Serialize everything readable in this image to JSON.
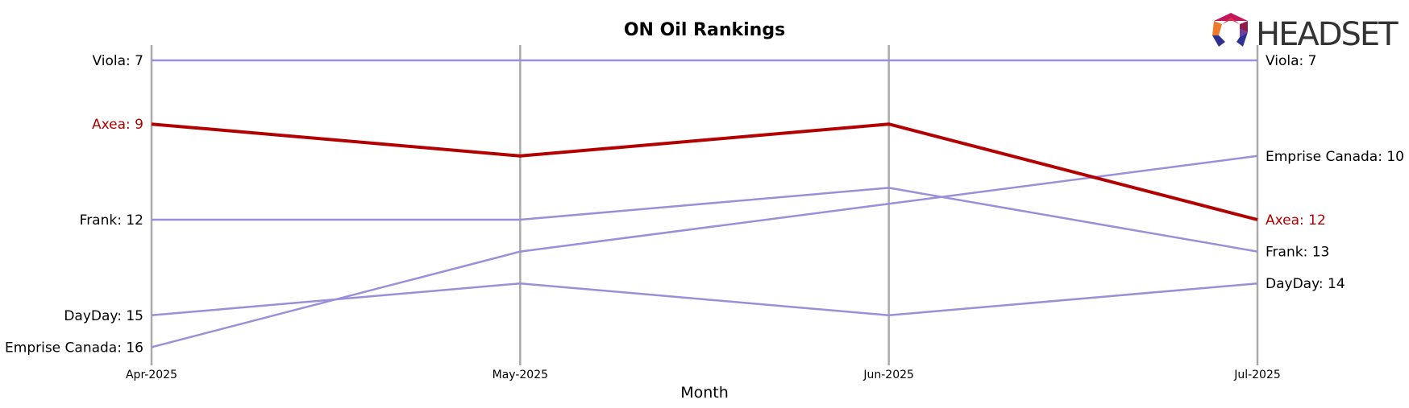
{
  "chart_data": {
    "type": "line",
    "title": "ON Oil Rankings",
    "xlabel": "Month",
    "ylabel": "",
    "x": [
      "Apr-2025",
      "May-2025",
      "Jun-2025",
      "Jul-2025"
    ],
    "ylim": [
      16.5,
      6.5
    ],
    "y_inverted": true,
    "grid": "vertical lines at each month",
    "series": [
      {
        "name": "Viola",
        "values": [
          7,
          7,
          7,
          7
        ],
        "color": "#9b8fd9",
        "highlight": false,
        "start_label": "Viola: 7",
        "end_label": "Viola: 7"
      },
      {
        "name": "Axea",
        "values": [
          9,
          10,
          9,
          12
        ],
        "color": "#b30000",
        "highlight": true,
        "start_label": "Axea: 9",
        "end_label": "Axea: 12"
      },
      {
        "name": "Frank",
        "values": [
          12,
          12,
          11,
          13
        ],
        "color": "#9b8fd9",
        "highlight": false,
        "start_label": "Frank: 12",
        "end_label": "Frank: 13"
      },
      {
        "name": "DayDay",
        "values": [
          15,
          14,
          15,
          14
        ],
        "color": "#9b8fd9",
        "highlight": false,
        "start_label": "DayDay: 15",
        "end_label": "DayDay: 14"
      },
      {
        "name": "Emprise Canada",
        "values": [
          16,
          13,
          11.5,
          10
        ],
        "color": "#9b8fd9",
        "highlight": false,
        "start_label": "Emprise Canada: 16",
        "end_label": "Emprise Canada: 10"
      }
    ]
  },
  "logo": {
    "text": "HEADSET",
    "icon": "headset-hexagon-logo-icon"
  },
  "colors": {
    "gridline": "#aaaaaa",
    "highlight": "#b30000",
    "normal": "#9b8fd9"
  }
}
